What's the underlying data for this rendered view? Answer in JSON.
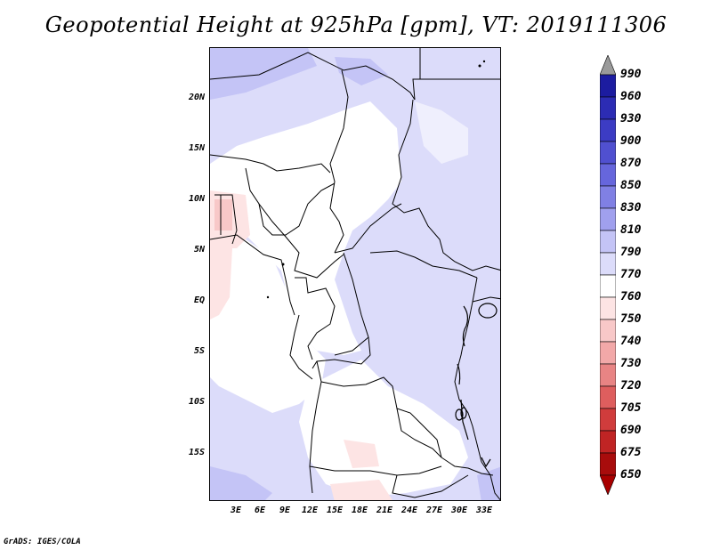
{
  "title": "Geopotential Height at 925hPa [gpm], VT: 2019111306",
  "credit": "GrADS: IGES/COLA",
  "map": {
    "lat_labels": [
      "20N",
      "15N",
      "10N",
      "5N",
      "EQ",
      "5S",
      "10S",
      "15S"
    ],
    "lon_labels": [
      "3E",
      "6E",
      "9E",
      "12E",
      "15E",
      "18E",
      "21E",
      "24E",
      "27E",
      "30E",
      "33E"
    ]
  },
  "colorbar": {
    "levels": [
      "990",
      "960",
      "930",
      "900",
      "870",
      "850",
      "830",
      "810",
      "790",
      "770",
      "760",
      "750",
      "740",
      "730",
      "720",
      "705",
      "690",
      "675",
      "650"
    ],
    "colors": [
      "#0c0c7a",
      "#1c1ca0",
      "#2c2cb4",
      "#3c3cc4",
      "#5050d0",
      "#6666dc",
      "#8080e4",
      "#a0a0ee",
      "#c4c4f6",
      "#dcdcfa",
      "#ffffff",
      "#fde4e4",
      "#f8c8c8",
      "#f2a8a8",
      "#e88484",
      "#de5e5e",
      "#d03c3c",
      "#c02424",
      "#a80c0c",
      "#8e0000"
    ],
    "top_arrow_color": "#9a9a9a",
    "bottom_arrow_color": "#a80000"
  },
  "shading_colors": {
    "light_blue": "#dcdcfa",
    "mid_blue": "#c4c4f6",
    "white": "#ffffff",
    "light_pink": "#fde4e4",
    "pink": "#f8c8c8"
  }
}
